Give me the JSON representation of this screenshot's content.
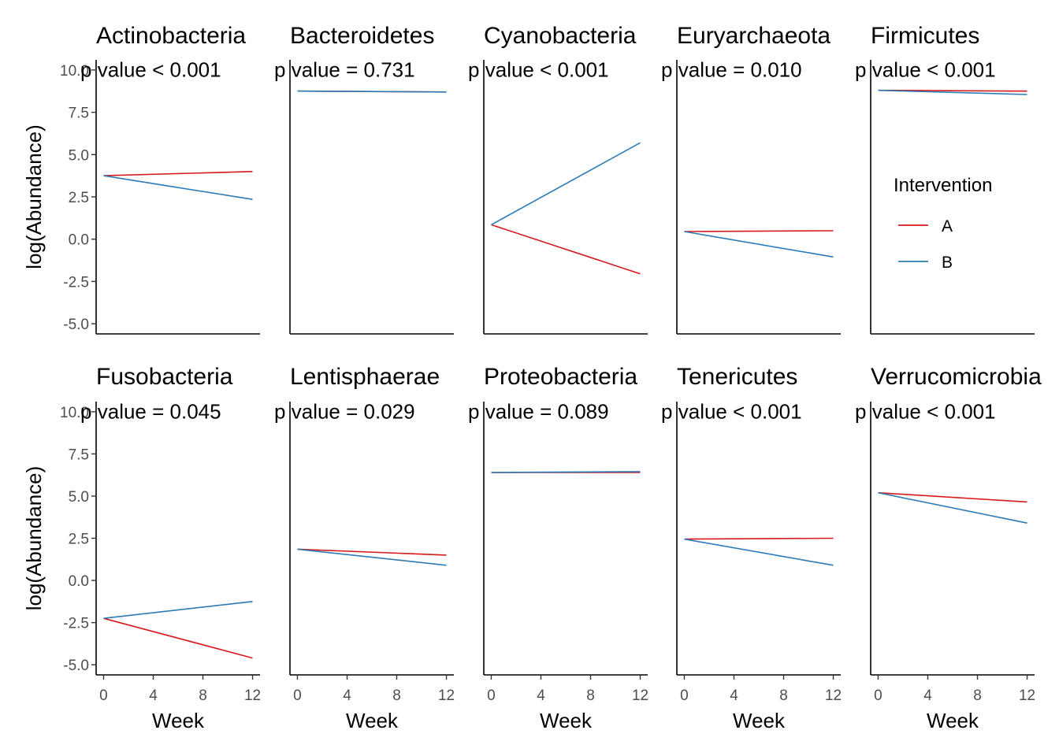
{
  "chart_data": {
    "type": "line",
    "xlabel": "Week",
    "ylabel": "log(Abundance)",
    "x_ticks": [
      "0",
      "4",
      "8",
      "12"
    ],
    "y_ticks": [
      "-5.0",
      "-2.5",
      "0.0",
      "2.5",
      "5.0",
      "7.5",
      "10.0"
    ],
    "xlim": [
      -0.6,
      12.6
    ],
    "ylim": [
      -5.6,
      10.6
    ],
    "legend": {
      "title": "Intervention",
      "placement": "right",
      "entries": [
        {
          "name": "A",
          "color": "#d7191c"
        },
        {
          "name": "B",
          "color": "#2c7bb6"
        }
      ]
    },
    "panels": [
      {
        "title": "Actinobacteria",
        "pvalue": "p value < 0.001",
        "series": [
          {
            "name": "A",
            "x": [
              0,
              12
            ],
            "y": [
              3.75,
              4.0
            ]
          },
          {
            "name": "B",
            "x": [
              0,
              12
            ],
            "y": [
              3.75,
              2.35
            ]
          }
        ]
      },
      {
        "title": "Bacteroidetes",
        "pvalue": "p value = 0.731",
        "series": [
          {
            "name": "A",
            "x": [
              0,
              12
            ],
            "y": [
              8.75,
              8.7
            ]
          },
          {
            "name": "B",
            "x": [
              0,
              12
            ],
            "y": [
              8.75,
              8.7
            ]
          }
        ]
      },
      {
        "title": "Cyanobacteria",
        "pvalue": "p value < 0.001",
        "series": [
          {
            "name": "A",
            "x": [
              0,
              12
            ],
            "y": [
              0.85,
              -2.05
            ]
          },
          {
            "name": "B",
            "x": [
              0,
              12
            ],
            "y": [
              0.85,
              5.7
            ]
          }
        ]
      },
      {
        "title": "Euryarchaeota",
        "pvalue": "p value = 0.010",
        "series": [
          {
            "name": "A",
            "x": [
              0,
              12
            ],
            "y": [
              0.45,
              0.5
            ]
          },
          {
            "name": "B",
            "x": [
              0,
              12
            ],
            "y": [
              0.45,
              -1.05
            ]
          }
        ]
      },
      {
        "title": "Firmicutes",
        "pvalue": "p value < 0.001",
        "series": [
          {
            "name": "A",
            "x": [
              0,
              12
            ],
            "y": [
              8.8,
              8.75
            ]
          },
          {
            "name": "B",
            "x": [
              0,
              12
            ],
            "y": [
              8.8,
              8.55
            ]
          }
        ]
      },
      {
        "title": "Fusobacteria",
        "pvalue": "p value = 0.045",
        "series": [
          {
            "name": "A",
            "x": [
              0,
              12
            ],
            "y": [
              -2.25,
              -4.6
            ]
          },
          {
            "name": "B",
            "x": [
              0,
              12
            ],
            "y": [
              -2.25,
              -1.25
            ]
          }
        ]
      },
      {
        "title": "Lentisphaerae",
        "pvalue": "p value = 0.029",
        "series": [
          {
            "name": "A",
            "x": [
              0,
              12
            ],
            "y": [
              1.85,
              1.5
            ]
          },
          {
            "name": "B",
            "x": [
              0,
              12
            ],
            "y": [
              1.85,
              0.9
            ]
          }
        ]
      },
      {
        "title": "Proteobacteria",
        "pvalue": "p value = 0.089",
        "series": [
          {
            "name": "A",
            "x": [
              0,
              12
            ],
            "y": [
              6.4,
              6.4
            ]
          },
          {
            "name": "B",
            "x": [
              0,
              12
            ],
            "y": [
              6.4,
              6.45
            ]
          }
        ]
      },
      {
        "title": "Tenericutes",
        "pvalue": "p value < 0.001",
        "series": [
          {
            "name": "A",
            "x": [
              0,
              12
            ],
            "y": [
              2.45,
              2.5
            ]
          },
          {
            "name": "B",
            "x": [
              0,
              12
            ],
            "y": [
              2.45,
              0.9
            ]
          }
        ]
      },
      {
        "title": "Verrucomicrobia",
        "pvalue": "p value < 0.001",
        "series": [
          {
            "name": "A",
            "x": [
              0,
              12
            ],
            "y": [
              5.2,
              4.65
            ]
          },
          {
            "name": "B",
            "x": [
              0,
              12
            ],
            "y": [
              5.2,
              3.4
            ]
          }
        ]
      }
    ]
  }
}
